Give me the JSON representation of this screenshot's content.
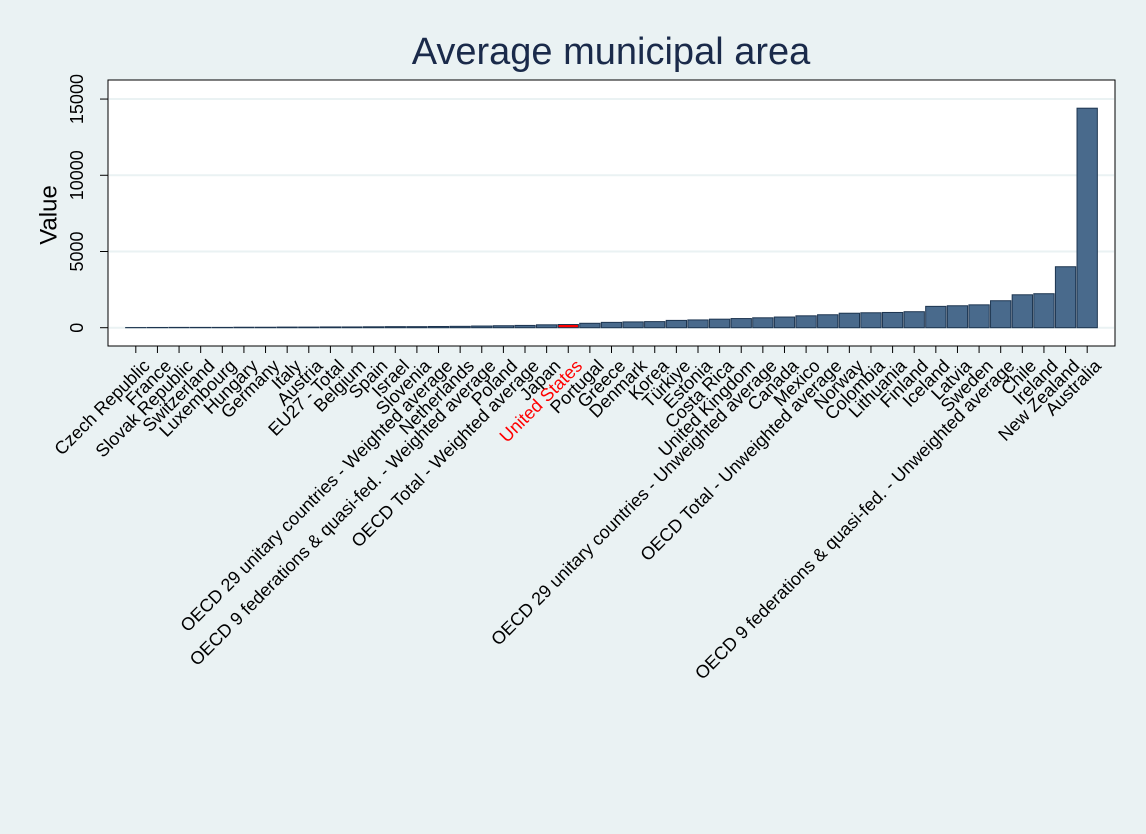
{
  "chart_data": {
    "type": "bar",
    "title": "Average municipal area",
    "y_label": "Value",
    "categories": [
      "Czech Republic",
      "France",
      "Slovak Republic",
      "Switzerland",
      "Luxembourg",
      "Hungary",
      "Germany",
      "Italy",
      "Austria",
      "EU27 - Total",
      "Belgium",
      "Spain",
      "Israel",
      "Slovenia",
      "OECD 29 unitary countries - Weighted average",
      "Netherlands",
      "OECD 9 federations & quasi-fed. - Weighted average",
      "Poland",
      "OECD Total - Weighted average",
      "Japan",
      "United States",
      "Portugal",
      "Greece",
      "Denmark",
      "Korea",
      "Türkiye",
      "Estonia",
      "Costa Rica",
      "United Kingdom",
      "OECD 29 unitary countries - Unweighted average",
      "Canada",
      "Mexico",
      "OECD Total - Unweighted average",
      "Norway",
      "Colombia",
      "Lithuania",
      "Finland",
      "Iceland",
      "Latvia",
      "Sweden",
      "OECD 9 federations & quasi-fed. - Unweighted average",
      "Chile",
      "Ireland",
      "New Zealand",
      "Australia"
    ],
    "values": [
      10,
      15,
      20,
      20,
      20,
      30,
      30,
      40,
      40,
      50,
      50,
      60,
      70,
      70,
      80,
      90,
      110,
      130,
      150,
      190,
      210,
      290,
      350,
      380,
      400,
      480,
      510,
      560,
      600,
      650,
      700,
      780,
      850,
      950,
      980,
      1000,
      1050,
      1400,
      1440,
      1500,
      1770,
      2160,
      2230,
      4000,
      14400
    ],
    "colors": [
      "#496a8c",
      "#496a8c",
      "#496a8c",
      "#496a8c",
      "#496a8c",
      "#496a8c",
      "#496a8c",
      "#496a8c",
      "#496a8c",
      "#496a8c",
      "#496a8c",
      "#496a8c",
      "#496a8c",
      "#496a8c",
      "#496a8c",
      "#496a8c",
      "#496a8c",
      "#496a8c",
      "#496a8c",
      "#496a8c",
      "#ff0000",
      "#496a8c",
      "#496a8c",
      "#496a8c",
      "#496a8c",
      "#496a8c",
      "#496a8c",
      "#496a8c",
      "#496a8c",
      "#496a8c",
      "#496a8c",
      "#496a8c",
      "#496a8c",
      "#496a8c",
      "#496a8c",
      "#496a8c",
      "#496a8c",
      "#496a8c",
      "#496a8c",
      "#496a8c",
      "#496a8c",
      "#496a8c",
      "#496a8c",
      "#496a8c",
      "#496a8c"
    ],
    "ylim": [
      -1200,
      16250
    ],
    "yticks": [
      0,
      5000,
      10000,
      15000
    ],
    "grid": true
  }
}
